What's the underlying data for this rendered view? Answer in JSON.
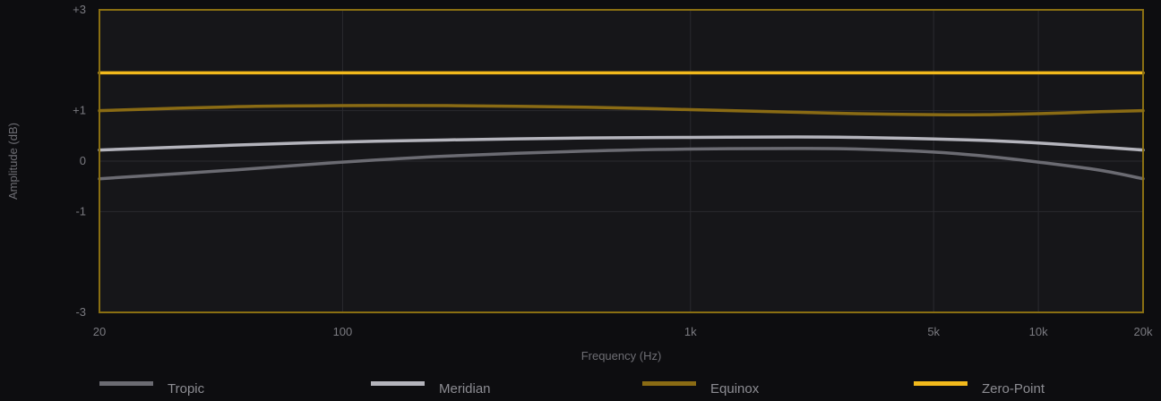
{
  "chart_data": {
    "type": "line",
    "title": "",
    "xlabel": "Frequency (Hz)",
    "ylabel": "Amplitude (dB)",
    "x_scale": "log",
    "xlim": [
      20,
      20000
    ],
    "ylim": [
      -3,
      3
    ],
    "x_ticks": [
      {
        "value": 20,
        "label": "20"
      },
      {
        "value": 100,
        "label": "100"
      },
      {
        "value": 1000,
        "label": "1k"
      },
      {
        "value": 5000,
        "label": "5k"
      },
      {
        "value": 10000,
        "label": "10k"
      },
      {
        "value": 20000,
        "label": "20k"
      }
    ],
    "y_ticks": [
      {
        "value": 3,
        "label": "+3"
      },
      {
        "value": 1,
        "label": "+1"
      },
      {
        "value": 0,
        "label": "0"
      },
      {
        "value": -1,
        "label": "-1"
      },
      {
        "value": -3,
        "label": "-3"
      }
    ],
    "grid": true,
    "legend_position": "bottom",
    "colors": {
      "background": "#0d0d10",
      "plot_background": "#161619",
      "frame": "#8a6f12",
      "grid": "#2a2a2e"
    },
    "series": [
      {
        "name": "Tropic",
        "color": "#6b6b72",
        "x": [
          20,
          50,
          100,
          200,
          500,
          1000,
          2000,
          3000,
          5000,
          7000,
          10000,
          15000,
          20000
        ],
        "y": [
          -0.35,
          -0.17,
          -0.02,
          0.1,
          0.2,
          0.24,
          0.25,
          0.24,
          0.18,
          0.1,
          -0.02,
          -0.18,
          -0.35
        ]
      },
      {
        "name": "Meridian",
        "color": "#b4b4bc",
        "x": [
          20,
          50,
          100,
          200,
          500,
          1000,
          2000,
          3000,
          5000,
          7000,
          10000,
          15000,
          20000
        ],
        "y": [
          0.22,
          0.32,
          0.38,
          0.42,
          0.46,
          0.47,
          0.48,
          0.47,
          0.44,
          0.41,
          0.36,
          0.28,
          0.22
        ]
      },
      {
        "name": "Equinox",
        "color": "#8a6b14",
        "x": [
          20,
          50,
          100,
          200,
          500,
          1000,
          2000,
          3000,
          5000,
          7000,
          10000,
          15000,
          20000
        ],
        "y": [
          1.0,
          1.08,
          1.1,
          1.1,
          1.07,
          1.02,
          0.97,
          0.94,
          0.92,
          0.92,
          0.94,
          0.98,
          1.0
        ]
      },
      {
        "name": "Zero-Point",
        "color": "#f2b91c",
        "x": [
          20,
          20000
        ],
        "y": [
          1.75,
          1.75
        ]
      }
    ]
  }
}
